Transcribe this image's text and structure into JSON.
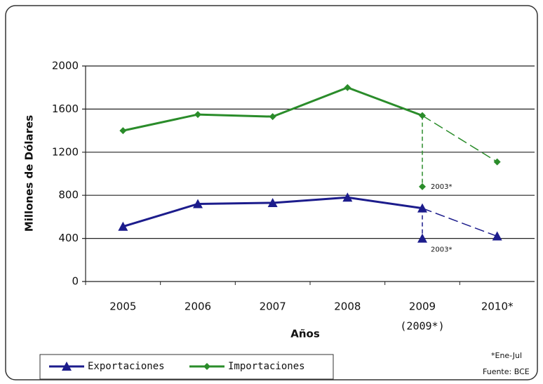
{
  "chart_data": {
    "type": "line",
    "categories": [
      "2005",
      "2006",
      "2007",
      "2008",
      "2009",
      "2010*"
    ],
    "category_sublabel": {
      "index": 4,
      "label": "(2009*)"
    },
    "x_label": "Años",
    "y_label": "Millones de Dólares",
    "ylim": [
      0,
      2000
    ],
    "yticks": [
      0,
      400,
      800,
      1200,
      1600,
      2000
    ],
    "grid": true,
    "series": [
      {
        "name": "Exportaciones",
        "color": "#1c1c8c",
        "marker": "triangle",
        "values": [
          510,
          720,
          730,
          780,
          680,
          420
        ],
        "dashed_from": 4,
        "partial_value": 400,
        "partial_label": "2003*"
      },
      {
        "name": "Importaciones",
        "color": "#2a8c2a",
        "marker": "diamond",
        "values": [
          1400,
          1550,
          1530,
          1800,
          1540,
          1110
        ],
        "dashed_from": 4,
        "partial_value": 880,
        "partial_label": "2003*"
      }
    ],
    "legend": "bottom-left",
    "notes": [
      "*Ene-Jul",
      "Fuente: BCE"
    ]
  }
}
